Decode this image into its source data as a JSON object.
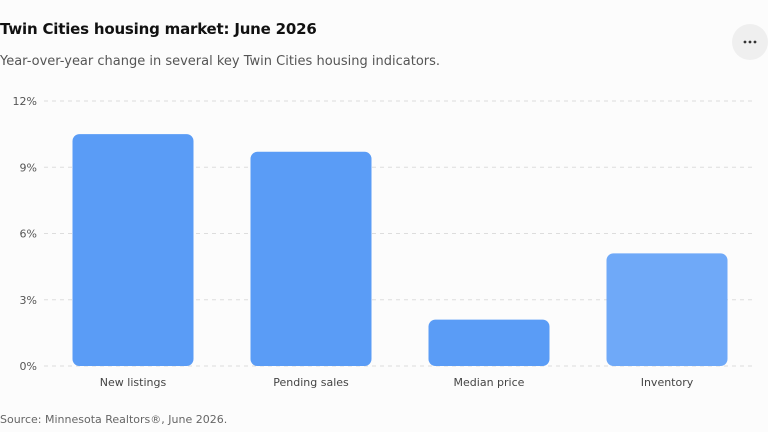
{
  "header": {
    "title": "Twin Cities housing market: June 2026",
    "subtitle": "Year-over-year change in several key Twin Cities housing indicators.",
    "menu_icon": "more-horizontal-icon"
  },
  "footer": {
    "source": "Source: Minnesota Realtors®, June 2026."
  },
  "colors": {
    "bar": "#5a9cf6",
    "bar_light": "#6fa9f8",
    "grid": "#dddddd",
    "axis_text": "#555555"
  },
  "chart_data": {
    "type": "bar",
    "categories": [
      "New listings",
      "Pending sales",
      "Median price",
      "Inventory"
    ],
    "values": [
      10.5,
      9.7,
      2.1,
      5.1
    ],
    "ylim": [
      0,
      12
    ],
    "yticks": [
      0,
      3,
      6,
      9,
      12
    ],
    "ytick_labels": [
      "0%",
      "3%",
      "6%",
      "9%",
      "12%"
    ],
    "title": "",
    "xlabel": "",
    "ylabel": "",
    "grid": true,
    "legend": "none"
  }
}
